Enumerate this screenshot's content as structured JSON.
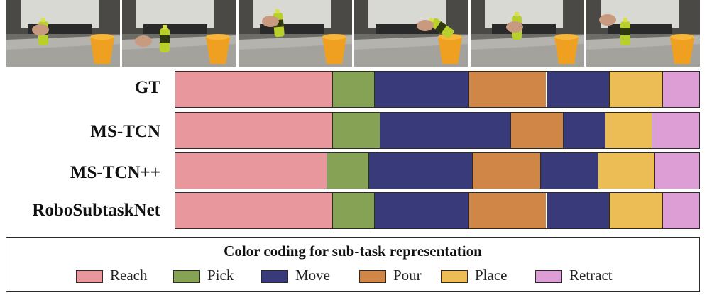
{
  "colors": {
    "Reach": "#E8979C",
    "Pick": "#86A355",
    "Move": "#383A79",
    "Pour": "#D08646",
    "Place": "#ECBD55",
    "Retract": "#DD9ED6"
  },
  "frames": [
    {
      "bottle_color": "#b9cf2b"
    },
    {
      "bottle_color": "#b9cf2b"
    },
    {
      "bottle_color": "#b9cf2b"
    },
    {
      "bottle_color": "#b9cf2b"
    },
    {
      "bottle_color": "#b9cf2b"
    },
    {
      "bottle_color": "#b9cf2b"
    }
  ],
  "rows": [
    {
      "label": "GT",
      "segments": [
        {
          "task": "Reach",
          "fraction": 0.299
        },
        {
          "task": "Pick",
          "fraction": 0.08
        },
        {
          "task": "Move",
          "fraction": 0.18
        },
        {
          "task": "Pour",
          "fraction": 0.149
        },
        {
          "task": "Move",
          "fraction": 0.12
        },
        {
          "task": "Place",
          "fraction": 0.101
        },
        {
          "task": "Retract",
          "fraction": 0.071
        }
      ]
    },
    {
      "label": "MS-TCN",
      "segments": [
        {
          "task": "Reach",
          "fraction": 0.299
        },
        {
          "task": "Pick",
          "fraction": 0.091
        },
        {
          "task": "Move",
          "fraction": 0.249
        },
        {
          "task": "Pour",
          "fraction": 0.101
        },
        {
          "task": "Move",
          "fraction": 0.08
        },
        {
          "task": "Place",
          "fraction": 0.089
        },
        {
          "task": "Retract",
          "fraction": 0.091
        }
      ]
    },
    {
      "label": "MS-TCN++",
      "segments": [
        {
          "task": "Reach",
          "fraction": 0.288
        },
        {
          "task": "Pick",
          "fraction": 0.08
        },
        {
          "task": "Move",
          "fraction": 0.199
        },
        {
          "task": "Pour",
          "fraction": 0.13
        },
        {
          "task": "Move",
          "fraction": 0.109
        },
        {
          "task": "Place",
          "fraction": 0.109
        },
        {
          "task": "Retract",
          "fraction": 0.085
        }
      ]
    },
    {
      "label": "RoboSubtaskNet",
      "segments": [
        {
          "task": "Reach",
          "fraction": 0.299
        },
        {
          "task": "Pick",
          "fraction": 0.08
        },
        {
          "task": "Move",
          "fraction": 0.18
        },
        {
          "task": "Pour",
          "fraction": 0.149
        },
        {
          "task": "Move",
          "fraction": 0.12
        },
        {
          "task": "Place",
          "fraction": 0.101
        },
        {
          "task": "Retract",
          "fraction": 0.071
        }
      ]
    }
  ],
  "legend": {
    "title": "Color coding for sub-task representation",
    "items": [
      "Reach",
      "Pick",
      "Move",
      "Pour",
      "Place",
      "Retract"
    ]
  }
}
